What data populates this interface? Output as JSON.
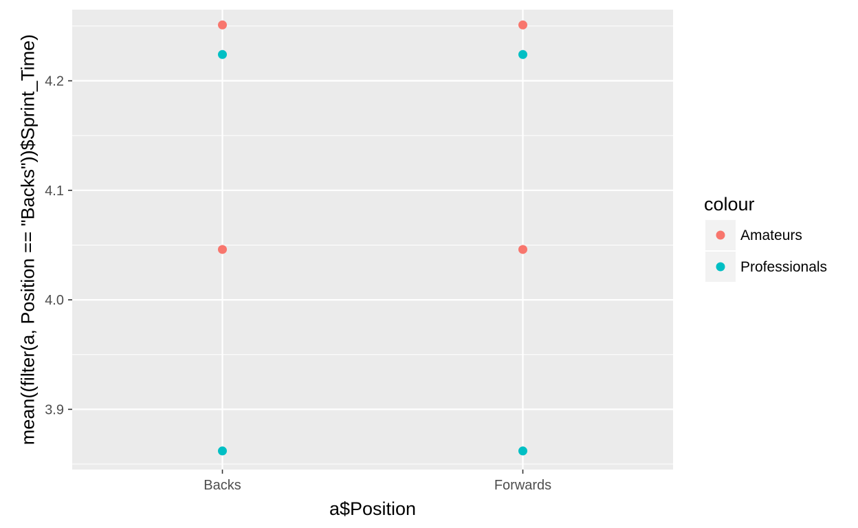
{
  "chart_data": {
    "type": "scatter",
    "title": "",
    "xlabel": "a$Position",
    "ylabel": "mean((filter(a, Position == \"Backs\"))$Sprint_Time)",
    "categories": [
      "Backs",
      "Forwards"
    ],
    "ylim": [
      3.845,
      4.265
    ],
    "y_ticks": [
      3.9,
      4.0,
      4.1,
      4.2
    ],
    "y_tick_labels": [
      "3.9",
      "4.0",
      "4.1",
      "4.2"
    ],
    "grid": true,
    "legend_title": "colour",
    "legend_position": "right",
    "series": [
      {
        "name": "Amateurs",
        "color": "#f8766d",
        "points": [
          {
            "x": "Backs",
            "y": 4.251
          },
          {
            "x": "Backs",
            "y": 4.046
          },
          {
            "x": "Forwards",
            "y": 4.251
          },
          {
            "x": "Forwards",
            "y": 4.046
          }
        ]
      },
      {
        "name": "Professionals",
        "color": "#00bfc4",
        "points": [
          {
            "x": "Backs",
            "y": 4.224
          },
          {
            "x": "Backs",
            "y": 3.862
          },
          {
            "x": "Forwards",
            "y": 4.224
          },
          {
            "x": "Forwards",
            "y": 3.862
          }
        ]
      }
    ]
  }
}
